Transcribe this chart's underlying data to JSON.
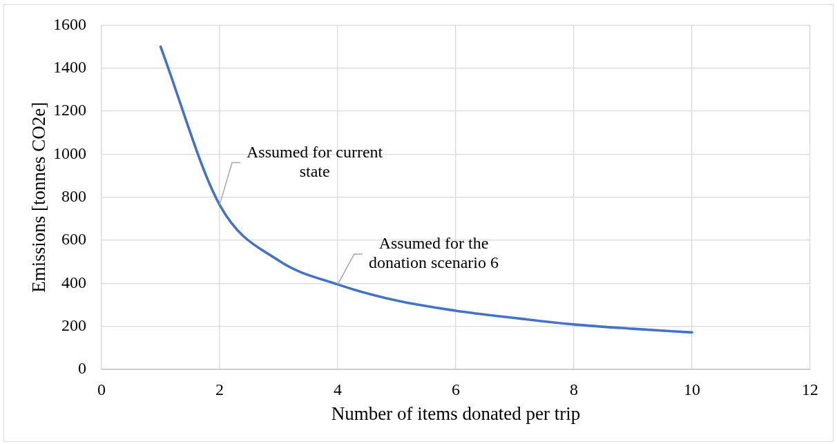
{
  "chart_data": {
    "type": "line",
    "xlabel": "Number of items donated per trip",
    "ylabel": "Emissions [tonnes CO2e]",
    "x": [
      1,
      2,
      3,
      4,
      5,
      6,
      7,
      8,
      9,
      10
    ],
    "series": [
      {
        "color": "#4472c4",
        "values": [
          1500,
          765,
          506,
          395,
          320,
          273,
          239,
          209,
          189,
          172
        ]
      }
    ],
    "xlim": [
      0,
      12
    ],
    "xticks": [
      0,
      2,
      4,
      6,
      8,
      10,
      12
    ],
    "ylim": [
      0,
      1600
    ],
    "yticks": [
      0,
      200,
      400,
      600,
      800,
      1000,
      1200,
      1400,
      1600
    ],
    "grid": true,
    "marker": "none",
    "line_style": "solid",
    "annotations": [
      {
        "text": "Assumed for current state",
        "x": 2,
        "y": 765
      },
      {
        "text": "Assumed for the donation scenario 6",
        "x": 4,
        "y": 395
      }
    ]
  }
}
